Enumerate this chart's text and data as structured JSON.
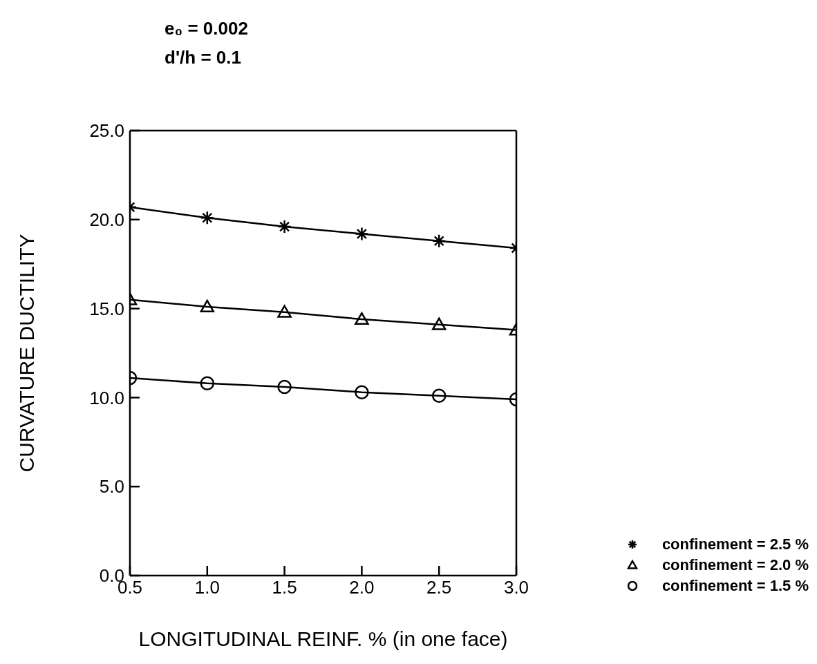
{
  "chart_data": {
    "type": "line",
    "annotations": [
      "e₀ = 0.002",
      "d'/h = 0.1"
    ],
    "xlabel": "LONGITUDINAL REINF. % (in one face)",
    "ylabel": "CURVATURE DUCTILITY",
    "x": [
      0.5,
      1.0,
      1.5,
      2.0,
      2.5,
      3.0
    ],
    "xlim": [
      0.5,
      3.0
    ],
    "xticks": [
      {
        "value": 0.5,
        "label": "0.5"
      },
      {
        "value": 1,
        "label": "1.0"
      },
      {
        "value": 1.5,
        "label": "1.5"
      },
      {
        "value": 2,
        "label": "2.0"
      },
      {
        "value": 2.5,
        "label": "2.5"
      },
      {
        "value": 3,
        "label": "3.0"
      }
    ],
    "ylim": [
      0,
      25
    ],
    "yticks": [
      {
        "value": 0,
        "label": "0.0"
      },
      {
        "value": 5,
        "label": "5.0"
      },
      {
        "value": 10,
        "label": "10.0"
      },
      {
        "value": 15,
        "label": "15.0"
      },
      {
        "value": 20,
        "label": "20.0"
      },
      {
        "value": 25,
        "label": "25.0"
      }
    ],
    "grid": false,
    "legend": "bottom right",
    "line_style": "solid",
    "series": [
      {
        "name": "confinement = 2.5 %",
        "color": "#000000",
        "marker": "cross",
        "values": [
          20.7,
          20.1,
          19.6,
          19.2,
          18.8,
          18.4
        ]
      },
      {
        "name": "confinement = 2.0 %",
        "color": "#000000",
        "marker": "triangle",
        "values": [
          15.5,
          15.1,
          14.8,
          14.4,
          14.1,
          13.8
        ]
      },
      {
        "name": "confinement = 1.5 %",
        "color": "#000000",
        "marker": "circle",
        "values": [
          11.1,
          10.8,
          10.6,
          10.3,
          10.1,
          9.9
        ]
      }
    ]
  }
}
